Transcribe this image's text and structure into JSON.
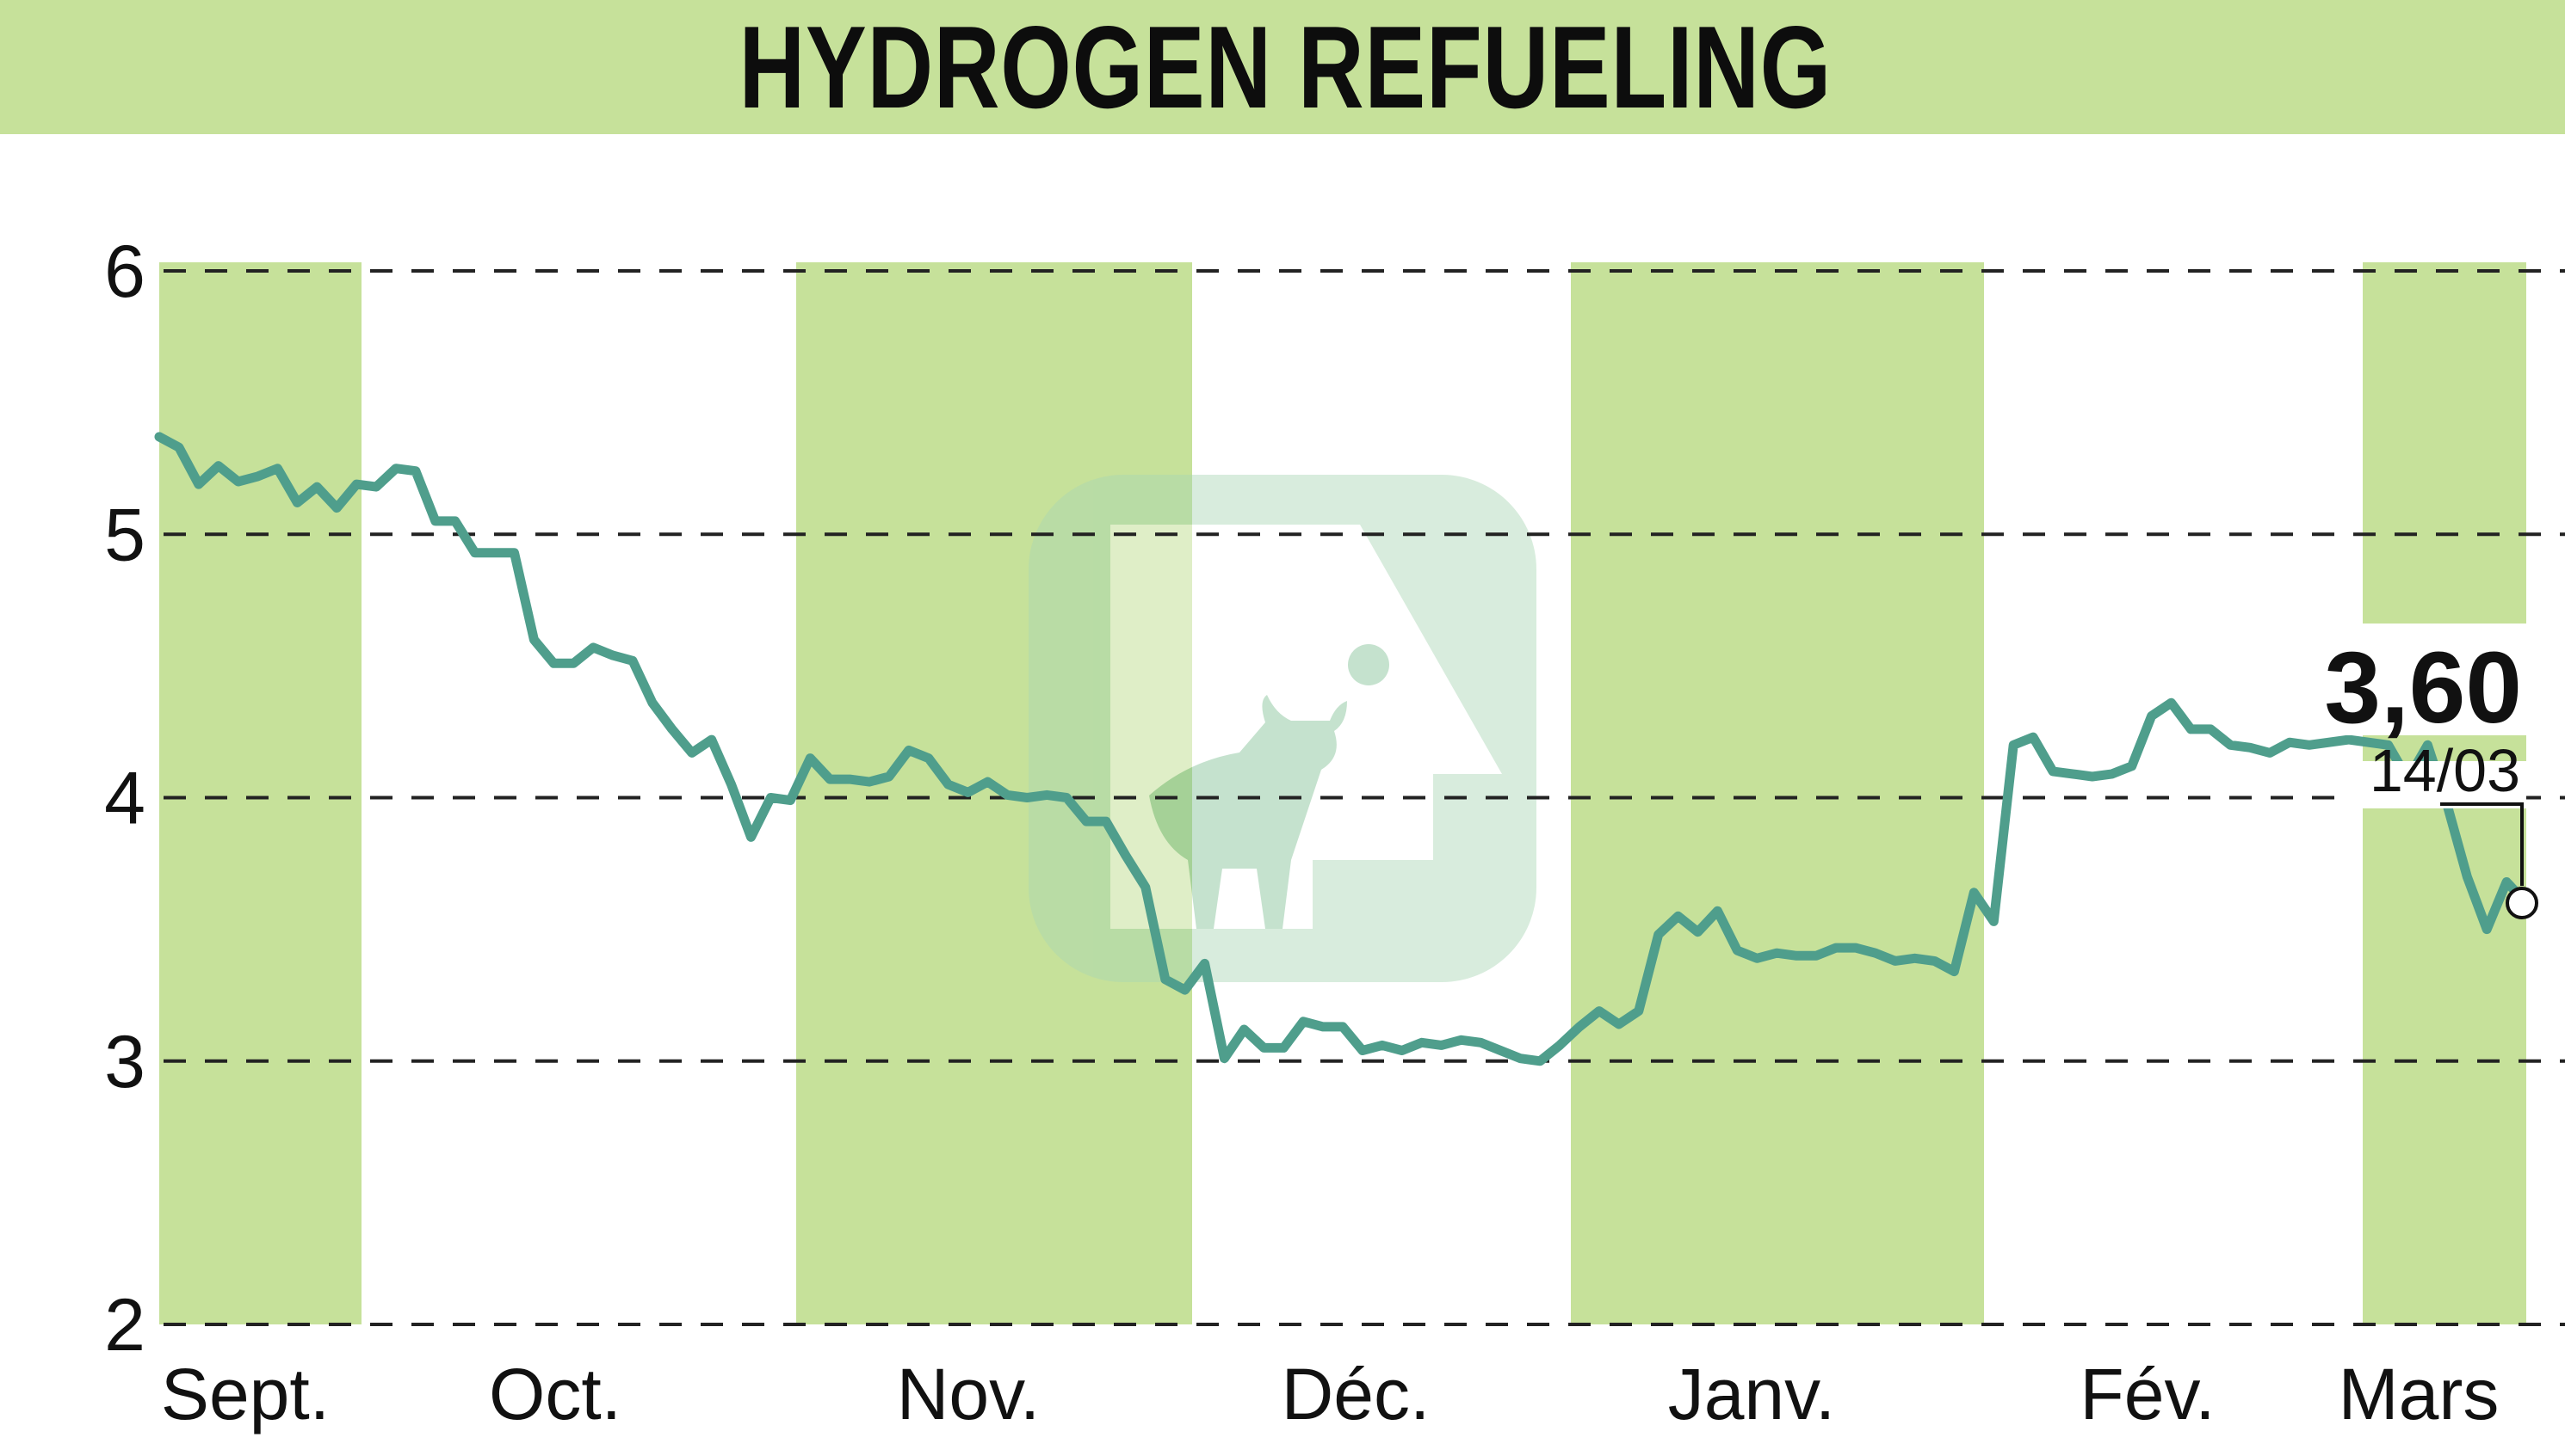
{
  "title": "HYDROGEN REFUELING",
  "colors": {
    "band": "#c6e19a",
    "line": "#4f9e8c",
    "grid": "#222222",
    "text": "#111111",
    "logo": "#7fbf94"
  },
  "chart_data": {
    "type": "line",
    "title": "HYDROGEN REFUELING",
    "xlabel": "",
    "ylabel": "",
    "ylim": [
      2,
      6
    ],
    "yticks": [
      2,
      3,
      4,
      5,
      6
    ],
    "grid": "dashed horizontal",
    "months": [
      "Sept.",
      "Oct.",
      "Nov.",
      "Déc.",
      "Janv.",
      "Fév.",
      "Mars"
    ],
    "shaded_months": [
      "Sept.",
      "Nov.",
      "Janv.",
      "Mars"
    ],
    "last_value_label": "3,60",
    "last_date_label": "14/03",
    "series": [
      {
        "values": [
          5.37,
          5.33,
          5.19,
          5.26,
          5.2,
          5.22,
          5.25,
          5.12,
          5.18,
          5.1,
          5.19,
          5.18,
          5.25,
          5.24,
          5.05,
          5.05,
          4.93,
          4.93,
          4.93,
          4.6,
          4.51,
          4.51,
          4.57,
          4.54,
          4.52,
          4.36,
          4.26,
          4.17,
          4.22,
          4.05,
          3.85,
          4.0,
          3.99,
          4.15,
          4.07,
          4.07,
          4.06,
          4.08,
          4.18,
          4.15,
          4.05,
          4.02,
          4.06,
          4.01,
          4.0,
          4.01,
          4.0,
          3.91,
          3.91,
          3.78,
          3.66,
          3.31,
          3.27,
          3.37,
          3.01,
          3.12,
          3.05,
          3.05,
          3.15,
          3.13,
          3.13,
          3.04,
          3.06,
          3.04,
          3.07,
          3.06,
          3.08,
          3.07,
          3.04,
          3.01,
          3.0,
          3.06,
          3.13,
          3.19,
          3.14,
          3.19,
          3.48,
          3.55,
          3.49,
          3.57,
          3.42,
          3.39,
          3.41,
          3.4,
          3.4,
          3.43,
          3.43,
          3.41,
          3.38,
          3.39,
          3.38,
          3.34,
          3.64,
          3.53,
          4.2,
          4.23,
          4.1,
          4.09,
          4.08,
          4.09,
          4.12,
          4.31,
          4.36,
          4.26,
          4.26,
          4.2,
          4.19,
          4.17,
          4.21,
          4.2,
          4.21,
          4.22,
          4.21,
          4.2,
          4.07,
          4.2,
          3.97,
          3.7,
          3.5,
          3.68,
          3.6
        ]
      }
    ]
  }
}
